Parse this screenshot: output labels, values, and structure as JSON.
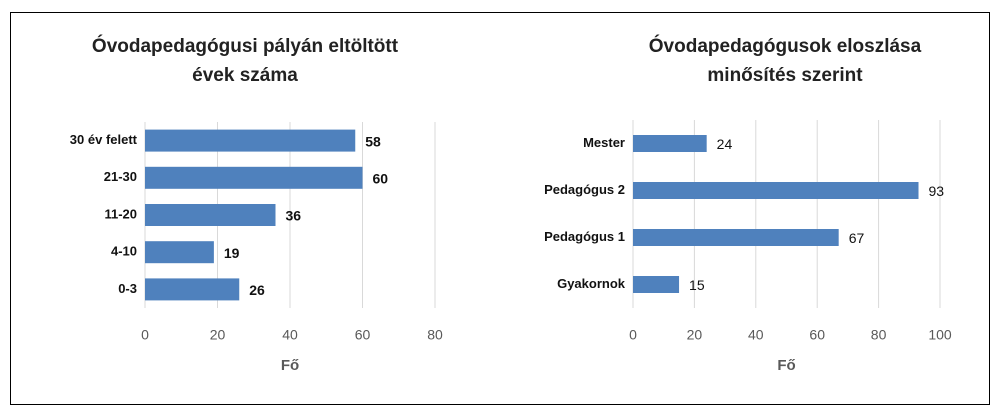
{
  "chart_data": [
    {
      "type": "barh",
      "title": [
        "Óvodapedagógusi pályán eltöltött",
        "évek száma"
      ],
      "categories": [
        "30 év felett",
        "21-30",
        "11-20",
        "4-10",
        "0-3"
      ],
      "values": [
        58,
        60,
        36,
        19,
        26
      ],
      "color": "#4f81bd",
      "xlim": [
        0,
        80
      ],
      "xticks": [
        0,
        20,
        40,
        60,
        80
      ],
      "xlabel": "Fő",
      "grid": true
    },
    {
      "type": "barh",
      "title": [
        "Óvodapedagógusok eloszlása",
        "minősítés szerint"
      ],
      "categories": [
        "Mester",
        "Pedagógus 2",
        "Pedagógus 1",
        "Gyakornok"
      ],
      "values": [
        24,
        93,
        67,
        15
      ],
      "color": "#4f81bd",
      "xlim": [
        0,
        100
      ],
      "xticks": [
        0,
        20,
        40,
        60,
        80,
        100
      ],
      "xlabel": "Fő",
      "grid": true
    }
  ]
}
